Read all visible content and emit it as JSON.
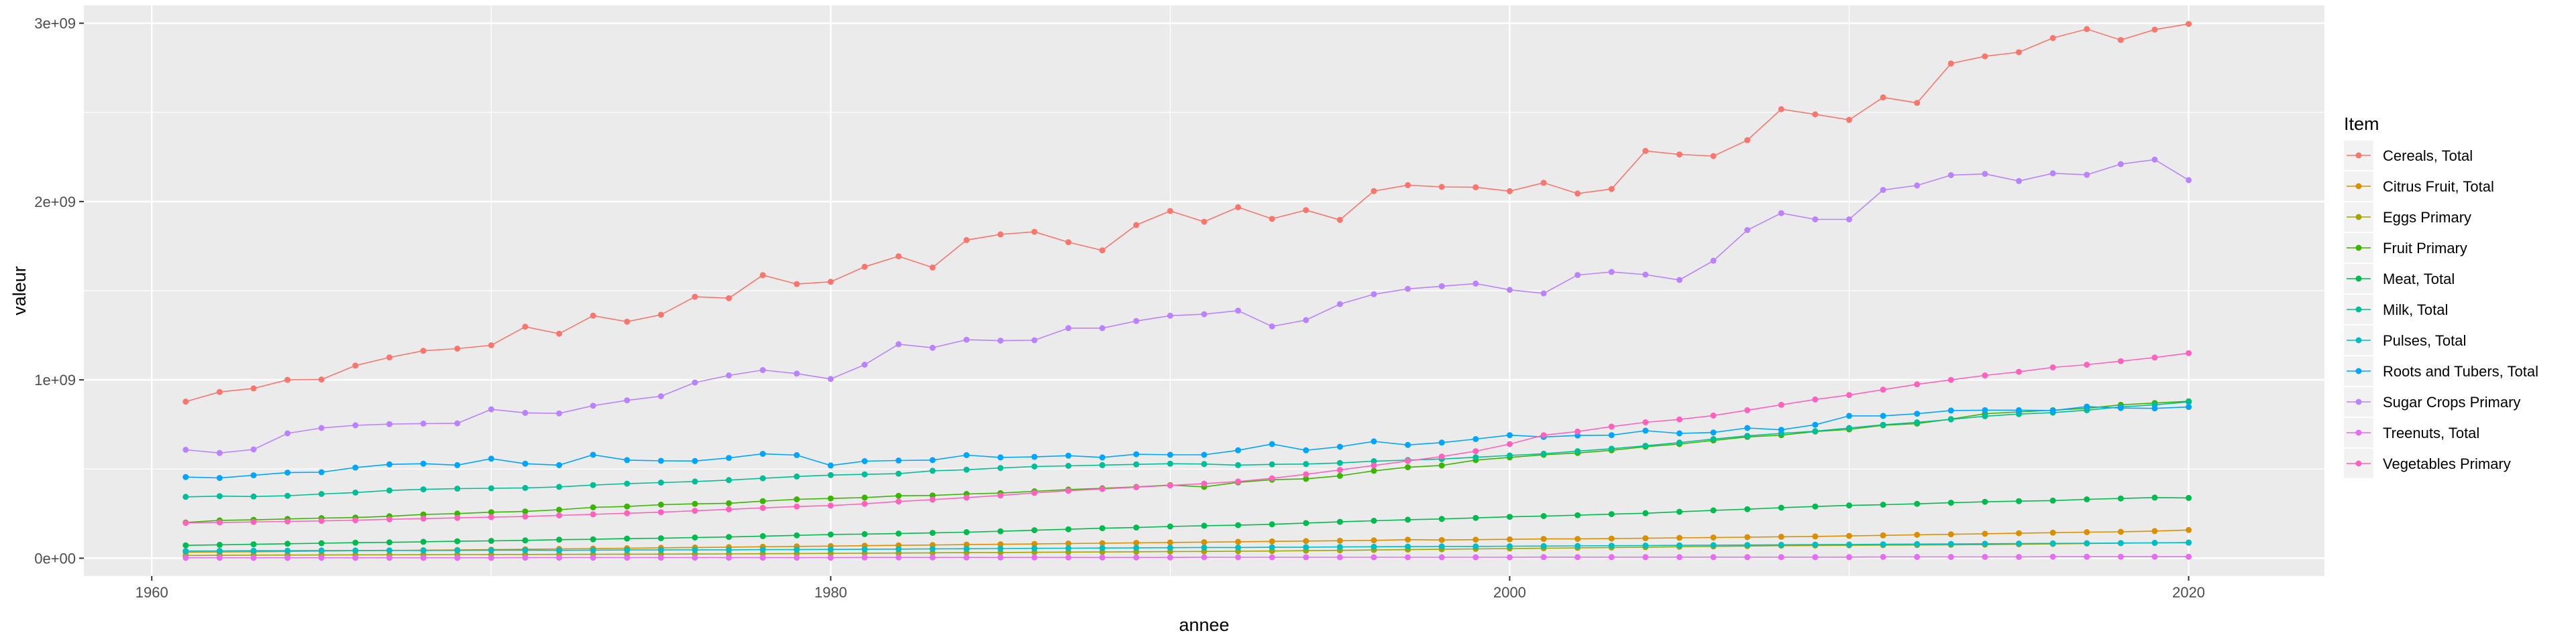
{
  "chart_data": {
    "type": "line",
    "xlabel": "annee",
    "ylabel": "valeur",
    "xlim": [
      1958,
      2024
    ],
    "ylim": [
      -100000000,
      3100000000
    ],
    "x_ticks": [
      1960,
      1980,
      2000,
      2020
    ],
    "x_tick_labels": [
      "1960",
      "1980",
      "2000",
      "2020"
    ],
    "y_ticks": [
      0,
      1000000000,
      2000000000,
      3000000000
    ],
    "y_tick_labels": [
      "0e+00",
      "1e+09",
      "2e+09",
      "3e+09"
    ],
    "grid": true,
    "legend": {
      "title": "Item",
      "position": "right"
    },
    "x": [
      1961,
      1962,
      1963,
      1964,
      1965,
      1966,
      1967,
      1968,
      1969,
      1970,
      1971,
      1972,
      1973,
      1974,
      1975,
      1976,
      1977,
      1978,
      1979,
      1980,
      1981,
      1982,
      1983,
      1984,
      1985,
      1986,
      1987,
      1988,
      1989,
      1990,
      1991,
      1992,
      1993,
      1994,
      1995,
      1996,
      1997,
      1998,
      1999,
      2000,
      2001,
      2002,
      2003,
      2004,
      2005,
      2006,
      2007,
      2008,
      2009,
      2010,
      2011,
      2012,
      2013,
      2014,
      2015,
      2016,
      2017,
      2018,
      2019,
      2020
    ],
    "series": [
      {
        "name": "Cereals, Total",
        "color": "#F8766D",
        "values": [
          878000000,
          932000000,
          952000000,
          1000000000,
          1002000000,
          1080000000,
          1126000000,
          1163000000,
          1175000000,
          1194000000,
          1298000000,
          1259000000,
          1360000000,
          1326000000,
          1365000000,
          1466000000,
          1458000000,
          1587000000,
          1537000000,
          1550000000,
          1634000000,
          1693000000,
          1630000000,
          1784000000,
          1816000000,
          1830000000,
          1772000000,
          1726000000,
          1868000000,
          1947000000,
          1887000000,
          1968000000,
          1903000000,
          1952000000,
          1897000000,
          2059000000,
          2092000000,
          2082000000,
          2080000000,
          2058000000,
          2105000000,
          2045000000,
          2070000000,
          2284000000,
          2264000000,
          2255000000,
          2344000000,
          2518000000,
          2489000000,
          2458000000,
          2584000000,
          2553000000,
          2774000000,
          2814000000,
          2837000000,
          2917000000,
          2967000000,
          2906000000,
          2964000000,
          2996000000
        ]
      },
      {
        "name": "Citrus Fruit, Total",
        "color": "#D89000",
        "values": [
          33000000,
          35000000,
          36000000,
          38000000,
          40000000,
          42000000,
          43000000,
          45000000,
          46000000,
          48000000,
          50000000,
          52000000,
          54000000,
          56000000,
          58000000,
          60000000,
          62000000,
          64000000,
          66000000,
          68000000,
          70000000,
          72000000,
          74000000,
          76000000,
          78000000,
          80000000,
          82000000,
          84000000,
          86000000,
          88000000,
          90000000,
          92000000,
          94000000,
          96000000,
          98000000,
          100000000,
          104000000,
          102000000,
          104000000,
          106000000,
          108000000,
          108000000,
          110000000,
          112000000,
          114000000,
          116000000,
          118000000,
          120000000,
          122000000,
          125000000,
          128000000,
          131000000,
          134000000,
          137000000,
          140000000,
          143000000,
          146000000,
          148000000,
          152000000,
          158000000
        ]
      },
      {
        "name": "Eggs Primary",
        "color": "#A3A500",
        "values": [
          15000000,
          16000000,
          17000000,
          17500000,
          18000000,
          18500000,
          19000000,
          19500000,
          20000000,
          20500000,
          21000000,
          21500000,
          22000000,
          22500000,
          23000000,
          23500000,
          24000000,
          25000000,
          26000000,
          27000000,
          28000000,
          29000000,
          30000000,
          31000000,
          32000000,
          33000000,
          34000000,
          35000000,
          36000000,
          37000000,
          38000000,
          39000000,
          40000000,
          42000000,
          44000000,
          46000000,
          48000000,
          50000000,
          52000000,
          54000000,
          56000000,
          58000000,
          60000000,
          62000000,
          64000000,
          66000000,
          68000000,
          70000000,
          71000000,
          72000000,
          73000000,
          74000000,
          75000000,
          76000000,
          78000000,
          80000000,
          82000000,
          84000000,
          86000000,
          88000000
        ]
      },
      {
        "name": "Fruit Primary",
        "color": "#39B600",
        "values": [
          200000000,
          212000000,
          215000000,
          220000000,
          225000000,
          228000000,
          235000000,
          245000000,
          250000000,
          258000000,
          262000000,
          272000000,
          285000000,
          290000000,
          300000000,
          305000000,
          308000000,
          320000000,
          330000000,
          335000000,
          340000000,
          350000000,
          352000000,
          360000000,
          365000000,
          375000000,
          385000000,
          392000000,
          400000000,
          410000000,
          400000000,
          425000000,
          440000000,
          445000000,
          462000000,
          490000000,
          510000000,
          520000000,
          550000000,
          565000000,
          580000000,
          590000000,
          605000000,
          625000000,
          640000000,
          660000000,
          680000000,
          690000000,
          710000000,
          722000000,
          745000000,
          755000000,
          780000000,
          810000000,
          820000000,
          830000000,
          840000000,
          860000000,
          870000000,
          880000000
        ]
      },
      {
        "name": "Meat, Total",
        "color": "#00BB4E",
        "values": [
          72000000,
          75000000,
          78000000,
          81000000,
          84000000,
          87000000,
          89000000,
          92000000,
          95000000,
          97000000,
          100000000,
          104000000,
          106000000,
          110000000,
          112000000,
          116000000,
          119000000,
          124000000,
          128000000,
          133000000,
          135000000,
          138000000,
          142000000,
          146000000,
          151000000,
          157000000,
          162000000,
          168000000,
          172000000,
          178000000,
          182000000,
          185000000,
          190000000,
          197000000,
          204000000,
          210000000,
          216000000,
          220000000,
          226000000,
          232000000,
          236000000,
          241000000,
          247000000,
          252000000,
          260000000,
          268000000,
          275000000,
          283000000,
          290000000,
          296000000,
          300000000,
          305000000,
          311000000,
          316000000,
          320000000,
          323000000,
          330000000,
          335000000,
          340000000,
          338000000
        ]
      },
      {
        "name": "Milk, Total",
        "color": "#00BF96",
        "values": [
          344000000,
          348000000,
          346000000,
          350000000,
          360000000,
          368000000,
          380000000,
          386000000,
          390000000,
          392000000,
          394000000,
          400000000,
          410000000,
          418000000,
          424000000,
          430000000,
          438000000,
          448000000,
          458000000,
          466000000,
          470000000,
          474000000,
          490000000,
          496000000,
          506000000,
          514000000,
          518000000,
          522000000,
          526000000,
          530000000,
          528000000,
          522000000,
          526000000,
          528000000,
          534000000,
          544000000,
          550000000,
          556000000,
          566000000,
          576000000,
          586000000,
          600000000,
          614000000,
          630000000,
          648000000,
          668000000,
          686000000,
          700000000,
          712000000,
          730000000,
          748000000,
          762000000,
          778000000,
          796000000,
          808000000,
          816000000,
          830000000,
          848000000,
          860000000,
          876000000
        ]
      },
      {
        "name": "Pulses, Total",
        "color": "#00BFC4",
        "values": [
          40000000,
          41000000,
          42000000,
          42000000,
          43000000,
          43000000,
          44000000,
          43000000,
          44000000,
          45000000,
          45000000,
          44000000,
          45000000,
          46000000,
          46000000,
          47000000,
          47000000,
          48000000,
          48000000,
          49000000,
          50000000,
          51000000,
          52000000,
          53000000,
          54000000,
          55000000,
          56000000,
          57000000,
          58000000,
          59000000,
          60000000,
          60000000,
          61000000,
          62000000,
          63000000,
          64000000,
          65000000,
          66000000,
          66000000,
          67000000,
          68000000,
          69000000,
          70000000,
          71000000,
          72000000,
          73000000,
          74000000,
          75000000,
          76000000,
          77000000,
          78000000,
          79000000,
          80000000,
          81000000,
          82000000,
          83000000,
          84000000,
          85000000,
          86000000,
          87000000
        ]
      },
      {
        "name": "Roots and Tubers, Total",
        "color": "#00A5FF",
        "values": [
          455000000,
          450000000,
          465000000,
          480000000,
          482000000,
          508000000,
          526000000,
          530000000,
          522000000,
          558000000,
          530000000,
          522000000,
          580000000,
          550000000,
          546000000,
          545000000,
          562000000,
          585000000,
          578000000,
          520000000,
          544000000,
          548000000,
          550000000,
          578000000,
          565000000,
          568000000,
          575000000,
          565000000,
          583000000,
          580000000,
          580000000,
          605000000,
          640000000,
          605000000,
          625000000,
          655000000,
          635000000,
          648000000,
          668000000,
          690000000,
          680000000,
          688000000,
          690000000,
          715000000,
          700000000,
          705000000,
          730000000,
          720000000,
          748000000,
          798000000,
          798000000,
          810000000,
          828000000,
          830000000,
          830000000,
          828000000,
          850000000,
          842000000,
          840000000,
          848000000
        ]
      },
      {
        "name": "Sugar Crops Primary",
        "color": "#B983FF",
        "values": [
          608000000,
          590000000,
          610000000,
          700000000,
          730000000,
          745000000,
          752000000,
          755000000,
          756000000,
          835000000,
          815000000,
          812000000,
          855000000,
          885000000,
          908000000,
          985000000,
          1025000000,
          1055000000,
          1035000000,
          1005000000,
          1085000000,
          1200000000,
          1180000000,
          1225000000,
          1220000000,
          1222000000,
          1290000000,
          1290000000,
          1330000000,
          1360000000,
          1368000000,
          1388000000,
          1300000000,
          1335000000,
          1425000000,
          1480000000,
          1510000000,
          1525000000,
          1540000000,
          1505000000,
          1485000000,
          1588000000,
          1605000000,
          1590000000,
          1560000000,
          1668000000,
          1840000000,
          1935000000,
          1900000000,
          1900000000,
          2065000000,
          2090000000,
          2148000000,
          2155000000,
          2115000000,
          2158000000,
          2150000000,
          2210000000,
          2235000000,
          2120000000
        ]
      },
      {
        "name": "Treenuts, Total",
        "color": "#E76BF3",
        "values": [
          2000000,
          2000000,
          2000000,
          2000000,
          2000000,
          2000000,
          2000000,
          2000000,
          2000000,
          2000000,
          3000000,
          3000000,
          3000000,
          3000000,
          3000000,
          3000000,
          3000000,
          3000000,
          3000000,
          3000000,
          4000000,
          4000000,
          4000000,
          4000000,
          4000000,
          4000000,
          4000000,
          4000000,
          4000000,
          4000000,
          5000000,
          5000000,
          5000000,
          5000000,
          5000000,
          5000000,
          5000000,
          5000000,
          5000000,
          5000000,
          6000000,
          6000000,
          6000000,
          6000000,
          6000000,
          6000000,
          6000000,
          6000000,
          6000000,
          6000000,
          7000000,
          7000000,
          7000000,
          7000000,
          7000000,
          8000000,
          8000000,
          8000000,
          8000000,
          8000000
        ]
      },
      {
        "name": "Vegetables Primary",
        "color": "#FF62BC",
        "values": [
          198000000,
          200000000,
          203000000,
          206000000,
          209000000,
          213000000,
          218000000,
          222000000,
          226000000,
          230000000,
          234000000,
          240000000,
          246000000,
          252000000,
          258000000,
          266000000,
          274000000,
          282000000,
          290000000,
          295000000,
          305000000,
          318000000,
          328000000,
          340000000,
          352000000,
          366000000,
          378000000,
          388000000,
          398000000,
          408000000,
          418000000,
          430000000,
          448000000,
          470000000,
          495000000,
          520000000,
          545000000,
          570000000,
          600000000,
          640000000,
          690000000,
          710000000,
          738000000,
          762000000,
          778000000,
          800000000,
          830000000,
          860000000,
          890000000,
          915000000,
          945000000,
          975000000,
          1000000000,
          1025000000,
          1045000000,
          1070000000,
          1085000000,
          1105000000,
          1125000000,
          1150000000
        ]
      }
    ]
  }
}
